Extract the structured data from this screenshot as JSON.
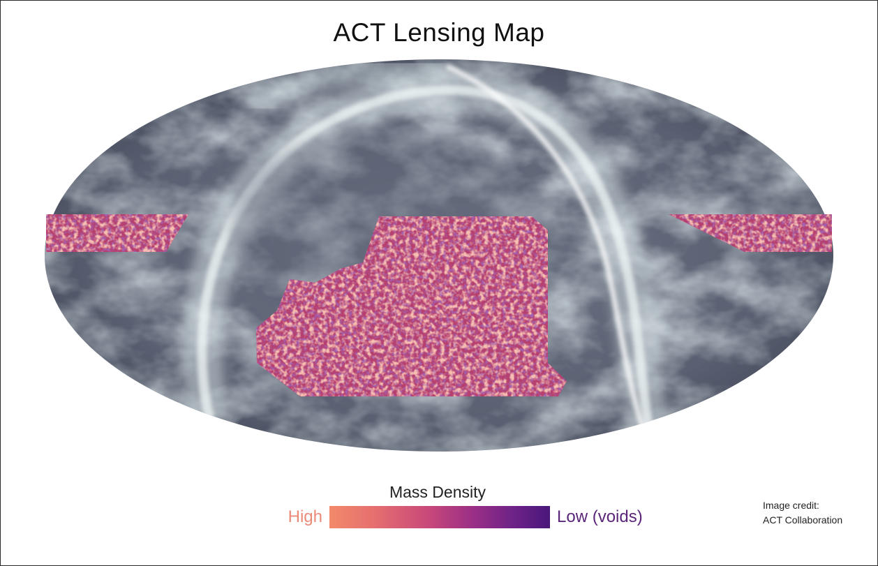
{
  "title": "ACT Lensing Map",
  "legend": {
    "title": "Mass Density",
    "high_label": "High",
    "low_label": "Low (voids)",
    "colors": [
      "#f3896a",
      "#e5706f",
      "#c8487a",
      "#9a2f86",
      "#6a2187",
      "#4a1779"
    ]
  },
  "credit": {
    "line1": "Image credit:",
    "line2": "ACT Collaboration"
  },
  "map": {
    "projection": "Mollweide full sky",
    "background_colors": [
      "#4a5060",
      "#cfe0e2"
    ],
    "lensing_region_colors": [
      "#b03a6e",
      "#ea7a6e"
    ]
  }
}
